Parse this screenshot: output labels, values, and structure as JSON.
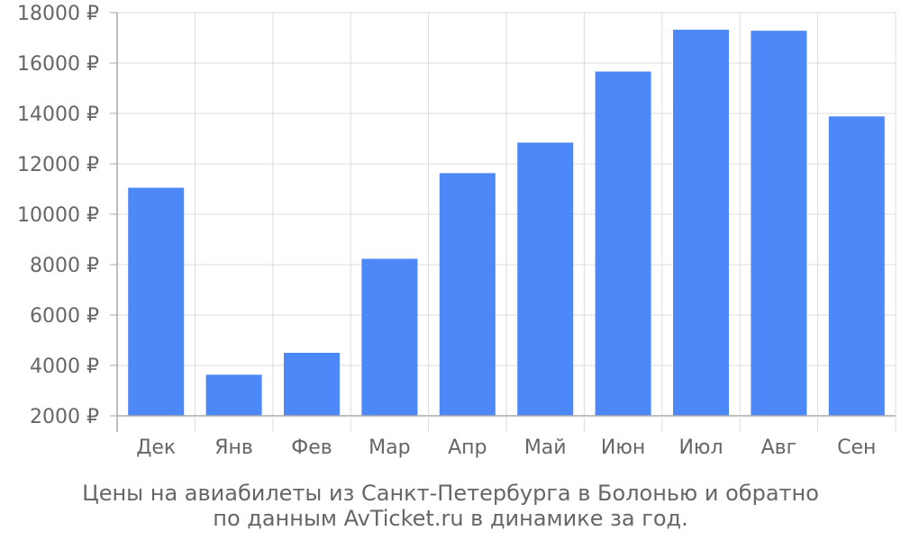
{
  "chart_data": {
    "type": "bar",
    "categories": [
      "Дек",
      "Янв",
      "Фев",
      "Мар",
      "Апр",
      "Май",
      "Июн",
      "Июл",
      "Авг",
      "Сен"
    ],
    "values": [
      11050,
      3630,
      4500,
      8230,
      11630,
      12840,
      15660,
      17320,
      17280,
      13880
    ],
    "ylim": [
      2000,
      18000
    ],
    "yticks": [
      2000,
      4000,
      6000,
      8000,
      10000,
      12000,
      14000,
      16000,
      18000
    ],
    "ytick_labels": [
      "2000 ₽",
      "4000 ₽",
      "6000 ₽",
      "8000 ₽",
      "10000 ₽",
      "12000 ₽",
      "14000 ₽",
      "16000 ₽",
      "18000 ₽"
    ],
    "grid": true,
    "bar_color": "#4d88f9",
    "grid_color": "#dddddd",
    "axis_color": "#aaaaaa",
    "text_color": "#666666"
  },
  "caption": {
    "line1": "Цены на авиабилеты из Санкт-Петербурга в Болонью и обратно",
    "line2": "по данным AvTicket.ru в динамике за год."
  }
}
